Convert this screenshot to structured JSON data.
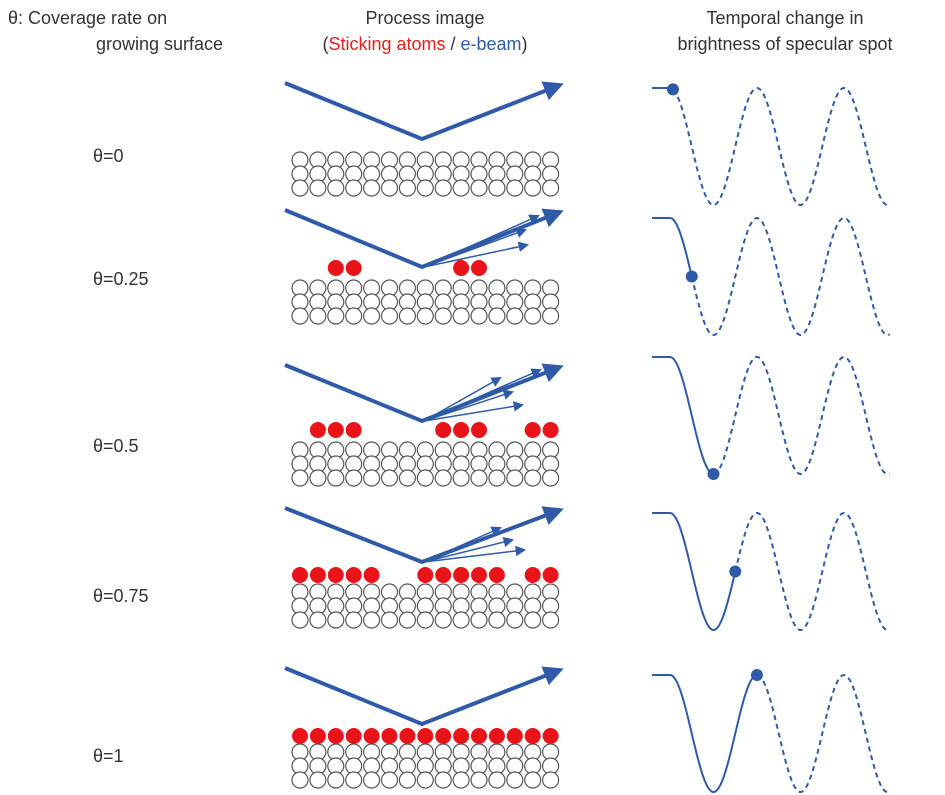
{
  "header": {
    "coverage": [
      "θ: Coverage rate on",
      "growing surface"
    ],
    "process": {
      "title": "Process image",
      "legend": [
        "(",
        "Sticking atoms",
        " / ",
        "e-beam",
        ")"
      ]
    },
    "brightness": [
      "Temporal change in",
      "brightness of specular spot"
    ]
  },
  "rows": [
    {
      "label": "θ=0"
    },
    {
      "label": "θ=0.25"
    },
    {
      "label": "θ=0.5"
    },
    {
      "label": "θ=0.75"
    },
    {
      "label": "θ=1"
    }
  ]
}
